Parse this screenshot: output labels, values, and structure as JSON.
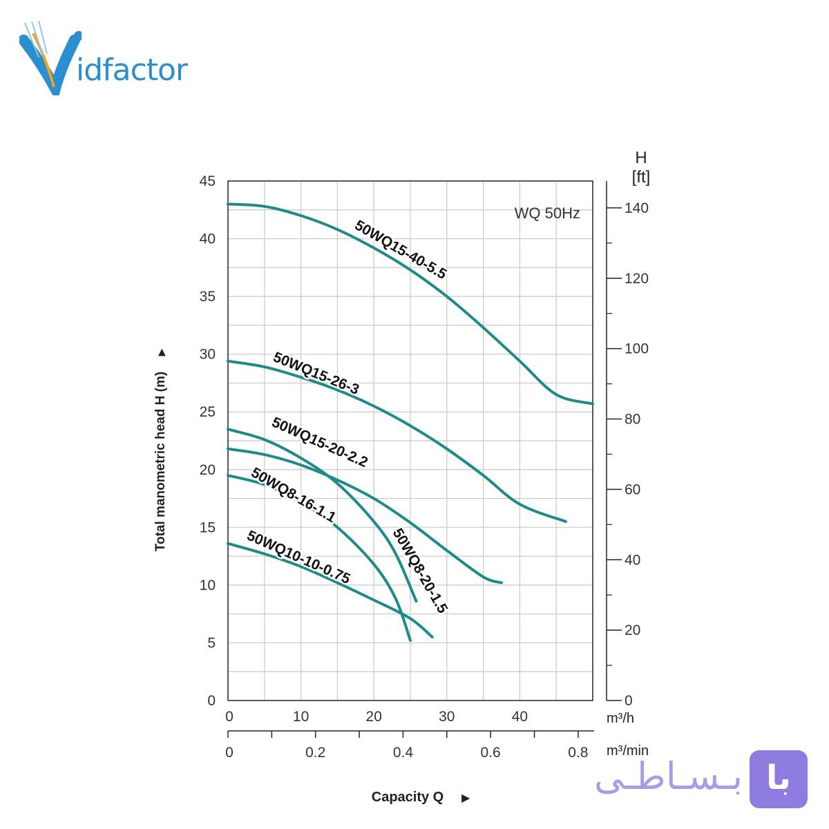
{
  "logo": {
    "text": "idfactor",
    "colors": {
      "bird": "#2a8fd0",
      "accent": "#f6a21e"
    }
  },
  "badge": {
    "text": "بـسـاطـی",
    "box_text": "با",
    "color": "#8f7be0"
  },
  "chart_data": {
    "type": "line",
    "title": "WQ  50Hz",
    "ylabel": "Total manometric head H (m)",
    "xlabel": "Capacity Q",
    "y2label_top": "H",
    "y2label_unit": "[ft]",
    "x_unit_primary": "m³/h",
    "x_unit_secondary": "m³/min",
    "xlim": [
      0,
      50
    ],
    "ylim": [
      0,
      45
    ],
    "y_ticks": [
      0,
      5,
      10,
      15,
      20,
      25,
      30,
      35,
      40,
      45
    ],
    "x_ticks_m3h": [
      0,
      10,
      20,
      30,
      40
    ],
    "x_ticks_m3min": [
      0,
      0.2,
      0.4,
      0.6,
      0.8
    ],
    "y2_ticks_ft": [
      0,
      20,
      40,
      60,
      80,
      100,
      120,
      140
    ],
    "grid": true,
    "line_color": "#1f8a8a",
    "series": [
      {
        "name": "50WQ15-40-5.5",
        "x": [
          0,
          5,
          10,
          15,
          20,
          25,
          30,
          35,
          40,
          45,
          50
        ],
        "y": [
          43,
          42.8,
          42,
          40.8,
          39.2,
          37.3,
          35,
          32.3,
          29.4,
          26.5,
          25.7
        ]
      },
      {
        "name": "50WQ15-26-3",
        "x": [
          0,
          5,
          10,
          15,
          20,
          25,
          30,
          35,
          40,
          46.3
        ],
        "y": [
          29.4,
          28.9,
          28,
          26.9,
          25.5,
          23.8,
          21.8,
          19.5,
          17.0,
          15.5
        ]
      },
      {
        "name": "50WQ15-20-2.2",
        "x": [
          0,
          5,
          10,
          15,
          20,
          25,
          30,
          35,
          37.5
        ],
        "y": [
          21.8,
          21.3,
          20.4,
          19.1,
          17.5,
          15.4,
          13.0,
          10.7,
          10.2
        ]
      },
      {
        "name": "50WQ8-20-1.5",
        "x": [
          0,
          5,
          10,
          15,
          20,
          23,
          25.8
        ],
        "y": [
          23.5,
          22.6,
          21.0,
          18.8,
          15.5,
          12.7,
          8.6
        ]
      },
      {
        "name": "50WQ8-16-1.1",
        "x": [
          0,
          5,
          10,
          15,
          20,
          23,
          25
        ],
        "y": [
          19.5,
          18.7,
          17.2,
          15.0,
          11.8,
          8.8,
          5.2
        ]
      },
      {
        "name": "50WQ10-10-0.75",
        "x": [
          0,
          5,
          10,
          15,
          20,
          25,
          28
        ],
        "y": [
          13.6,
          12.7,
          11.6,
          10.2,
          8.7,
          7.1,
          5.5
        ]
      }
    ]
  }
}
